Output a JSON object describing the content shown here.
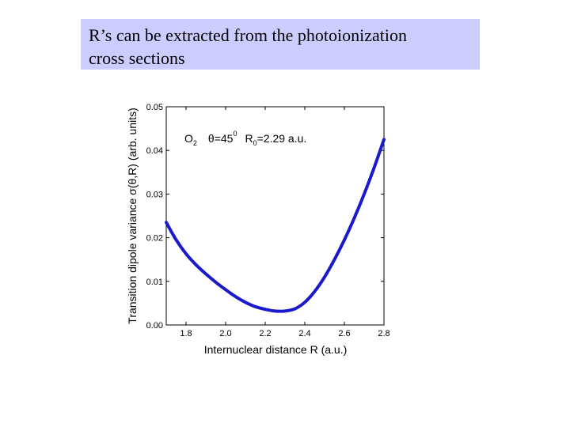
{
  "slide": {
    "title_line1": "R’s can be extracted from the photoionization",
    "title_line2": "cross sections"
  },
  "chart_data": {
    "type": "line",
    "title": "",
    "xlabel": "Internuclear distance R (a.u.)",
    "ylabel": "Transition dipole variance σ(θ,R) (arb. units)",
    "xlim": [
      1.7,
      2.8
    ],
    "ylim": [
      0.0,
      0.05
    ],
    "xticks": [
      "1.8",
      "2.0",
      "2.2",
      "2.4",
      "2.6",
      "2.8"
    ],
    "yticks": [
      "0.00",
      "0.01",
      "0.02",
      "0.03",
      "0.04",
      "0.05"
    ],
    "grid": false,
    "annotation": {
      "molecule": "O",
      "molecule_sub": "2",
      "angle": "θ=45",
      "angle_sup": "0",
      "req": "R",
      "req_sub": "0",
      "req_value": "=2.29 a.u."
    },
    "series": [
      {
        "color": "#1a1acc",
        "x": [
          1.7,
          1.75,
          1.8,
          1.85,
          1.9,
          1.95,
          2.0,
          2.05,
          2.1,
          2.15,
          2.2,
          2.25,
          2.3,
          2.35,
          2.4,
          2.45,
          2.5,
          2.55,
          2.6,
          2.65,
          2.7,
          2.75,
          2.8
        ],
        "y": [
          0.0235,
          0.0195,
          0.0163,
          0.0138,
          0.0117,
          0.0098,
          0.0081,
          0.0065,
          0.0052,
          0.0042,
          0.0036,
          0.0032,
          0.0032,
          0.0037,
          0.0052,
          0.0077,
          0.011,
          0.015,
          0.0195,
          0.0245,
          0.03,
          0.036,
          0.0425
        ]
      }
    ]
  }
}
